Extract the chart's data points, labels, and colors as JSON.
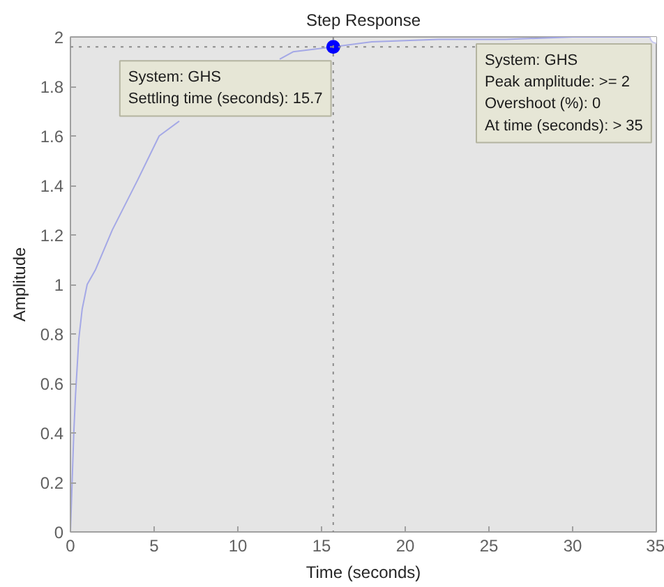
{
  "chart_data": {
    "type": "line",
    "title": "Step Response",
    "xlabel": "Time (seconds)",
    "ylabel": "Amplitude",
    "x": [
      0,
      0.05,
      0.1,
      0.2,
      0.3,
      0.5,
      0.7,
      1.0,
      1.5,
      2.5,
      4,
      5.3,
      6.5,
      7.25,
      9,
      12.5,
      13.3,
      15.7,
      18,
      22,
      26,
      30,
      35
    ],
    "series": [
      {
        "color": "#a4a8e6",
        "values": [
          0,
          0.1,
          0.2,
          0.4,
          0.55,
          0.78,
          0.9,
          1.0,
          1.06,
          1.22,
          1.42,
          1.6,
          1.66,
          null,
          null,
          1.91,
          1.94,
          1.96,
          1.98,
          1.99,
          1.99,
          2.0,
          2.0
        ]
      }
    ],
    "xlim": [
      0,
      35
    ],
    "ylim": [
      0,
      2
    ],
    "xticks": [
      0,
      5,
      10,
      15,
      20,
      25,
      30,
      35
    ],
    "yticks": [
      0,
      0.2,
      0.4,
      0.6,
      0.8,
      1,
      1.2,
      1.4,
      1.6,
      1.8,
      2
    ],
    "grid": false,
    "marker": "none",
    "line_style": "solid",
    "ref_lines": [
      {
        "axis": "y",
        "value": 1.96,
        "color": "#8c8c8c",
        "line_style": "dotted"
      },
      {
        "axis": "x",
        "value": 15.7,
        "color": "#8c8c8c",
        "line_style": "dotted"
      }
    ],
    "annotations": [
      {
        "text": "System: GHS\nSettling time (seconds): 15.7",
        "x": 15.7,
        "y": 1.96
      },
      {
        "text": "System: GHS\nPeak amplitude: >= 2\nOvershoot (%): 0\nAt time (seconds): > 35",
        "x": 35,
        "y": 2
      }
    ]
  }
}
